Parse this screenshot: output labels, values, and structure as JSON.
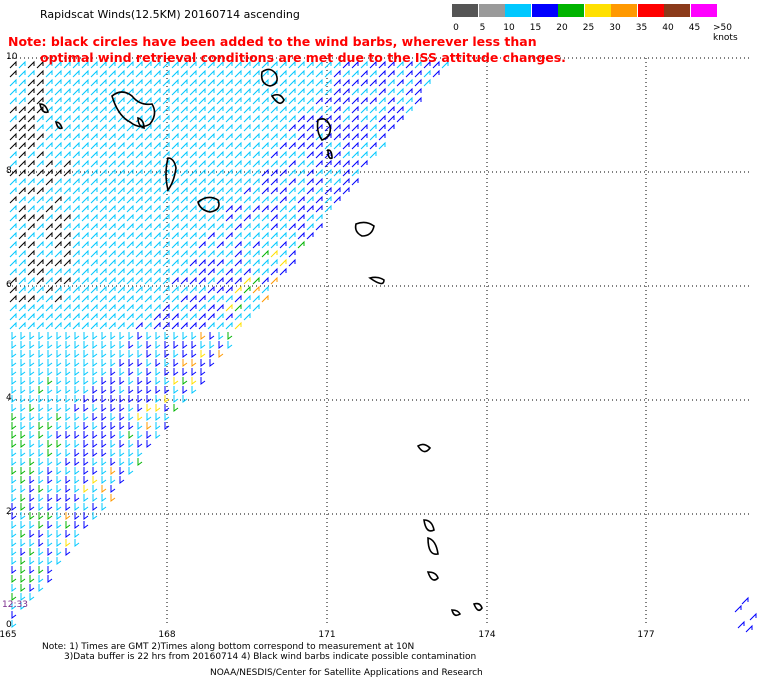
{
  "header": {
    "title": "Rapidscat Winds(12.5KM) 20160714 ascending"
  },
  "note": {
    "line1": "Note: black circles have been added to the wind barbs, wherever less than",
    "line2": "optimal wind retrieval conditions are met due to the ISS attitude changes."
  },
  "legend": {
    "items": [
      {
        "label": "0",
        "color": "#555555"
      },
      {
        "label": "5",
        "color": "#9a9a9a"
      },
      {
        "label": "10",
        "color": "#00c8ff"
      },
      {
        "label": "15",
        "color": "#0000ff"
      },
      {
        "label": "20",
        "color": "#00b400"
      },
      {
        "label": "25",
        "color": "#ffe000"
      },
      {
        "label": "30",
        "color": "#ff9900"
      },
      {
        "label": "35",
        "color": "#ff0000"
      },
      {
        "label": "40",
        "color": "#8b3a1a"
      },
      {
        "label": "45",
        "color": "#ff00ff"
      },
      {
        "label": ">50 knots",
        "color": "#5a0a8a"
      }
    ]
  },
  "axes": {
    "x_ticks": [
      "165",
      "168",
      "171",
      "174",
      "177"
    ],
    "y_ticks": [
      "10",
      "8",
      "6",
      "4",
      "2",
      "0"
    ]
  },
  "timestamp": "12:33",
  "footnote": {
    "line1": "Note: 1) Times are GMT 2)Times along bottom correspond to measurement at 10N",
    "line2": "3)Data buffer is 22 hrs from 20160714 4) Black wind barbs indicate possible contamination"
  },
  "credit": "NOAA/NESDIS/Center for Satellite Applications and Research",
  "colors": {
    "contamination": "#000000",
    "speed_5": "#00c8ff",
    "speed_10": "#0000ff",
    "speed_15": "#00b400",
    "speed_20": "#ffe000",
    "speed_25": "#ff9900"
  }
}
